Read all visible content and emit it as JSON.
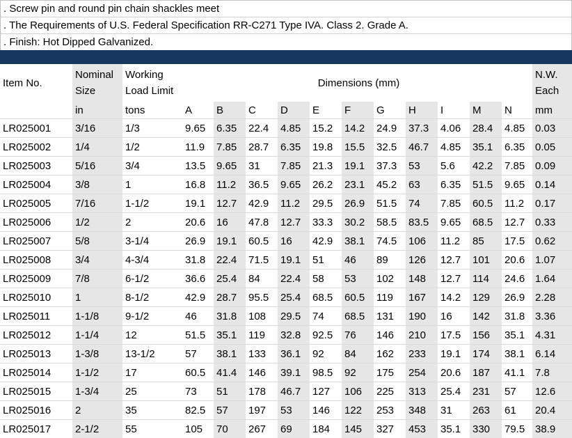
{
  "notes": [
    ". Screw pin and round pin chain shackles meet",
    ". The Requirements of U.S. Federal Specification RR-C271 Type IVA. Class 2. Grade A.",
    ".  Finish: Hot Dipped Galvanized."
  ],
  "header": {
    "item_no": "Item No.",
    "nominal_size_1": "Nominal",
    "nominal_size_2": "Size",
    "working_load_1": "Working",
    "working_load_2": "Load Limit",
    "dimensions": "Dimensions (mm)",
    "nw_1": "N.W.",
    "nw_2": "Each",
    "unit_size": "in",
    "unit_load": "tons",
    "unit_nw": "mm",
    "dim_cols": [
      "A",
      "B",
      "C",
      "D",
      "E",
      "F",
      "G",
      "H",
      "I",
      "M",
      "N"
    ]
  },
  "rows": [
    [
      "LR025001",
      "3/16",
      "1/3",
      "9.65",
      "6.35",
      "22.4",
      "4.85",
      "15.2",
      "14.2",
      "24.9",
      "37.3",
      "4.06",
      "28.4",
      "4.85",
      "0.03"
    ],
    [
      "LR025002",
      "1/4",
      "1/2",
      "11.9",
      "7.85",
      "28.7",
      "6.35",
      "19.8",
      "15.5",
      "32.5",
      "46.7",
      "4.85",
      "35.1",
      "6.35",
      "0.05"
    ],
    [
      "LR025003",
      "5/16",
      "3/4",
      "13.5",
      "9.65",
      "31",
      "7.85",
      "21.3",
      "19.1",
      "37.3",
      "53",
      "5.6",
      "42.2",
      "7.85",
      "0.09"
    ],
    [
      "LR025004",
      "3/8",
      "1",
      "16.8",
      "11.2",
      "36.5",
      "9.65",
      "26.2",
      "23.1",
      "45.2",
      "63",
      "6.35",
      "51.5",
      "9.65",
      "0.14"
    ],
    [
      "LR025005",
      "7/16",
      "1-1/2",
      "19.1",
      "12.7",
      "42.9",
      "11.2",
      "29.5",
      "26.9",
      "51.5",
      "74",
      "7.85",
      "60.5",
      "11.2",
      "0.17"
    ],
    [
      "LR025006",
      "1/2",
      "2",
      "20.6",
      "16",
      "47.8",
      "12.7",
      "33.3",
      "30.2",
      "58.5",
      "83.5",
      "9.65",
      "68.5",
      "12.7",
      "0.33"
    ],
    [
      "LR025007",
      "5/8",
      "3-1/4",
      "26.9",
      "19.1",
      "60.5",
      "16",
      "42.9",
      "38.1",
      "74.5",
      "106",
      "11.2",
      "85",
      "17.5",
      "0.62"
    ],
    [
      "LR025008",
      "3/4",
      "4-3/4",
      "31.8",
      "22.4",
      "71.5",
      "19.1",
      "51",
      "46",
      "89",
      "126",
      "12.7",
      "101",
      "20.6",
      "1.07"
    ],
    [
      "LR025009",
      "7/8",
      "6-1/2",
      "36.6",
      "25.4",
      "84",
      "22.4",
      "58",
      "53",
      "102",
      "148",
      "12.7",
      "114",
      "24.6",
      "1.64"
    ],
    [
      "LR025010",
      "1",
      "8-1/2",
      "42.9",
      "28.7",
      "95.5",
      "25.4",
      "68.5",
      "60.5",
      "119",
      "167",
      "14.2",
      "129",
      "26.9",
      "2.28"
    ],
    [
      "LR025011",
      "1-1/8",
      "9-1/2",
      "46",
      "31.8",
      "108",
      "29.5",
      "74",
      "68.5",
      "131",
      "190",
      "16",
      "142",
      "31.8",
      "3.36"
    ],
    [
      "LR025012",
      "1-1/4",
      "12",
      "51.5",
      "35.1",
      "119",
      "32.8",
      "92.5",
      "76",
      "146",
      "210",
      "17.5",
      "156",
      "35.1",
      "4.31"
    ],
    [
      "LR025013",
      "1-3/8",
      "13-1/2",
      "57",
      "38.1",
      "133",
      "36.1",
      "92",
      "84",
      "162",
      "233",
      "19.1",
      "174",
      "38.1",
      "6.14"
    ],
    [
      "LR025014",
      "1-1/2",
      "17",
      "60.5",
      "41.4",
      "146",
      "39.1",
      "98.5",
      "92",
      "175",
      "254",
      "20.6",
      "187",
      "41.1",
      "7.8"
    ],
    [
      "LR025015",
      "1-3/4",
      "25",
      "73",
      "51",
      "178",
      "46.7",
      "127",
      "106",
      "225",
      "313",
      "25.4",
      "231",
      "57",
      "12.6"
    ],
    [
      "LR025016",
      "2",
      "35",
      "82.5",
      "57",
      "197",
      "53",
      "146",
      "122",
      "253",
      "348",
      "31",
      "263",
      "61",
      "20.4"
    ],
    [
      "LR025017",
      "2-1/2",
      "55",
      "105",
      "70",
      "267",
      "69",
      "184",
      "145",
      "327",
      "453",
      "35.1",
      "330",
      "79.5",
      "38.9"
    ]
  ]
}
